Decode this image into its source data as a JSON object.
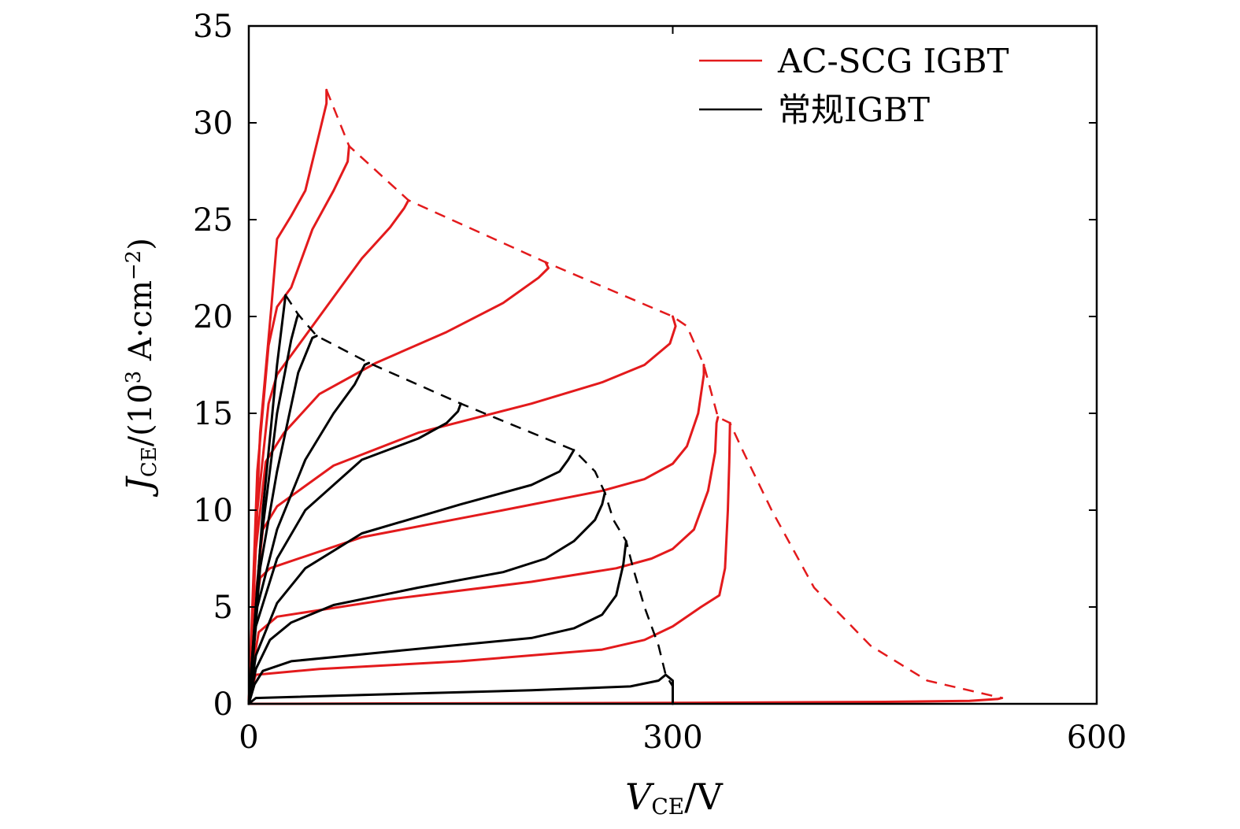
{
  "chart_data": {
    "type": "line",
    "xlabel": {
      "main": "V",
      "sub": "CE",
      "unit": "/V"
    },
    "ylabel": {
      "main": "J",
      "sub": "CE",
      "unit_pre": "/(10",
      "unit_sup": "3",
      "unit_mid": " A·cm",
      "unit_sup2": "−2",
      "unit_post": ")"
    },
    "xlim": [
      0,
      600
    ],
    "ylim": [
      0,
      35
    ],
    "xticks": [
      "0",
      "300",
      "600"
    ],
    "yticks": [
      "0",
      "5",
      "10",
      "15",
      "20",
      "25",
      "30",
      "35"
    ],
    "grid": false,
    "legend_position": "top-right",
    "colors": {
      "ac_scg": "#e31a1c",
      "conventional": "#000000"
    },
    "legend": [
      {
        "label": "AC-SCG IGBT",
        "color": "#e31a1c"
      },
      {
        "label": "常规IGBT",
        "color": "#000000"
      }
    ],
    "series": [
      {
        "name": "AC-SCG IGBT",
        "color": "#e31a1c",
        "curves": [
          [
            [
              0,
              0
            ],
            [
              100,
              0.02
            ],
            [
              300,
              0.05
            ],
            [
              450,
              0.1
            ],
            [
              510,
              0.15
            ],
            [
              530,
              0.25
            ],
            [
              533,
              0.3
            ]
          ],
          [
            [
              0,
              0
            ],
            [
              2,
              0.8
            ],
            [
              5,
              1.5
            ],
            [
              50,
              1.8
            ],
            [
              150,
              2.2
            ],
            [
              250,
              2.8
            ],
            [
              280,
              3.3
            ],
            [
              300,
              4.0
            ],
            [
              320,
              5.0
            ],
            [
              333,
              5.6
            ],
            [
              337,
              7.0
            ],
            [
              339,
              10.0
            ],
            [
              340,
              12.5
            ],
            [
              340.5,
              14.5
            ]
          ],
          [
            [
              0,
              0
            ],
            [
              3,
              2
            ],
            [
              7,
              3.7
            ],
            [
              20,
              4.5
            ],
            [
              100,
              5.4
            ],
            [
              200,
              6.3
            ],
            [
              260,
              7.0
            ],
            [
              285,
              7.5
            ],
            [
              300,
              8.0
            ],
            [
              315,
              9.0
            ],
            [
              325,
              11.0
            ],
            [
              330,
              13.0
            ],
            [
              331,
              14.5
            ],
            [
              332,
              14.8
            ]
          ],
          [
            [
              0,
              0
            ],
            [
              3,
              4
            ],
            [
              8,
              6.5
            ],
            [
              15,
              7.0
            ],
            [
              80,
              8.6
            ],
            [
              180,
              10.0
            ],
            [
              250,
              11.0
            ],
            [
              280,
              11.6
            ],
            [
              300,
              12.4
            ],
            [
              310,
              13.3
            ],
            [
              318,
              15.0
            ],
            [
              322,
              17.0
            ],
            [
              322,
              17.5
            ]
          ],
          [
            [
              0,
              0
            ],
            [
              4,
              5
            ],
            [
              10,
              9
            ],
            [
              20,
              10.2
            ],
            [
              60,
              12.3
            ],
            [
              120,
              14.0
            ],
            [
              200,
              15.5
            ],
            [
              250,
              16.6
            ],
            [
              280,
              17.5
            ],
            [
              298,
              18.6
            ],
            [
              302,
              19.5
            ],
            [
              300,
              20.0
            ]
          ],
          [
            [
              0,
              0
            ],
            [
              5,
              8
            ],
            [
              12,
              12.5
            ],
            [
              25,
              14
            ],
            [
              50,
              16
            ],
            [
              90,
              17.6
            ],
            [
              140,
              19.2
            ],
            [
              180,
              20.7
            ],
            [
              205,
              22.0
            ],
            [
              212,
              22.5
            ],
            [
              210,
              22.8
            ]
          ],
          [
            [
              0,
              0
            ],
            [
              6,
              10
            ],
            [
              14,
              15.5
            ],
            [
              20,
              17
            ],
            [
              40,
              19
            ],
            [
              60,
              21.0
            ],
            [
              80,
              23.0
            ],
            [
              100,
              24.6
            ],
            [
              110,
              25.6
            ],
            [
              113,
              26.0
            ]
          ],
          [
            [
              0,
              0
            ],
            [
              6,
              12
            ],
            [
              14,
              18.5
            ],
            [
              20,
              20.5
            ],
            [
              30,
              21.5
            ],
            [
              45,
              24.5
            ],
            [
              60,
              26.5
            ],
            [
              70,
              28.0
            ],
            [
              71,
              28.8
            ]
          ],
          [
            [
              0,
              0
            ],
            [
              8,
              14
            ],
            [
              16,
              20.5
            ],
            [
              20,
              24
            ],
            [
              30,
              25.2
            ],
            [
              40,
              26.5
            ],
            [
              50,
              29.5
            ],
            [
              55,
              31.0
            ],
            [
              55,
              31.7
            ]
          ]
        ],
        "boundary": [
          [
            55,
            31.7
          ],
          [
            71,
            28.8
          ],
          [
            113,
            26.0
          ],
          [
            210,
            22.8
          ],
          [
            300,
            20.0
          ],
          [
            310,
            19.5
          ],
          [
            322,
            17.5
          ],
          [
            332,
            14.8
          ],
          [
            340.5,
            14.5
          ],
          [
            350,
            13.0
          ],
          [
            370,
            10.0
          ],
          [
            400,
            6.0
          ],
          [
            440,
            3.0
          ],
          [
            480,
            1.2
          ],
          [
            533,
            0.3
          ]
        ]
      },
      {
        "name": "常规IGBT",
        "color": "#000000",
        "curves": [
          [
            [
              0,
              0
            ],
            [
              5,
              0.3
            ],
            [
              100,
              0.5
            ],
            [
              200,
              0.7
            ],
            [
              270,
              0.9
            ],
            [
              290,
              1.2
            ],
            [
              295,
              1.5
            ],
            [
              300,
              1.2
            ],
            [
              300,
              0.9
            ],
            [
              300,
              0
            ]
          ],
          [
            [
              0,
              0
            ],
            [
              4,
              1
            ],
            [
              10,
              1.7
            ],
            [
              30,
              2.2
            ],
            [
              100,
              2.7
            ],
            [
              200,
              3.4
            ],
            [
              230,
              3.9
            ],
            [
              250,
              4.6
            ],
            [
              260,
              5.6
            ],
            [
              265,
              7.2
            ],
            [
              267,
              8.4
            ]
          ],
          [
            [
              0,
              0
            ],
            [
              5,
              1.8
            ],
            [
              15,
              3.3
            ],
            [
              30,
              4.2
            ],
            [
              60,
              5.1
            ],
            [
              120,
              6.0
            ],
            [
              180,
              6.8
            ],
            [
              210,
              7.5
            ],
            [
              230,
              8.4
            ],
            [
              245,
              9.5
            ],
            [
              250,
              10.3
            ],
            [
              252,
              10.9
            ]
          ],
          [
            [
              0,
              0
            ],
            [
              5,
              2.5
            ],
            [
              20,
              5.2
            ],
            [
              40,
              7.0
            ],
            [
              80,
              8.8
            ],
            [
              150,
              10.3
            ],
            [
              200,
              11.3
            ],
            [
              220,
              12.0
            ],
            [
              226,
              12.6
            ],
            [
              230,
              13.1
            ]
          ],
          [
            [
              0,
              0
            ],
            [
              5,
              4
            ],
            [
              20,
              7.5
            ],
            [
              40,
              10
            ],
            [
              80,
              12.6
            ],
            [
              120,
              13.7
            ],
            [
              140,
              14.5
            ],
            [
              148,
              15.1
            ],
            [
              150,
              15.5
            ]
          ],
          [
            [
              0,
              0
            ],
            [
              6,
              5
            ],
            [
              20,
              9
            ],
            [
              40,
              12.6
            ],
            [
              60,
              15.0
            ],
            [
              75,
              16.5
            ],
            [
              82,
              17.5
            ],
            [
              85,
              17.6
            ]
          ],
          [
            [
              0,
              0
            ],
            [
              8,
              7
            ],
            [
              20,
              12
            ],
            [
              35,
              17.1
            ],
            [
              45,
              18.9
            ],
            [
              48,
              19.0
            ]
          ],
          [
            [
              0,
              0
            ],
            [
              8,
              8
            ],
            [
              20,
              15
            ],
            [
              30,
              18.8
            ],
            [
              34,
              19.9
            ],
            [
              35,
              20.1
            ]
          ],
          [
            [
              0,
              0
            ],
            [
              10,
              10
            ],
            [
              20,
              17.5
            ],
            [
              25,
              20.5
            ],
            [
              26,
              21.1
            ]
          ]
        ],
        "boundary": [
          [
            26,
            21.1
          ],
          [
            35,
            20.1
          ],
          [
            48,
            19.0
          ],
          [
            85,
            17.6
          ],
          [
            150,
            15.5
          ],
          [
            230,
            13.1
          ],
          [
            245,
            12.0
          ],
          [
            252,
            10.9
          ],
          [
            258,
            9.5
          ],
          [
            267,
            8.4
          ],
          [
            272,
            7.0
          ],
          [
            280,
            5.0
          ],
          [
            290,
            3.0
          ],
          [
            295,
            1.5
          ],
          [
            300,
            0.9
          ]
        ]
      }
    ]
  }
}
